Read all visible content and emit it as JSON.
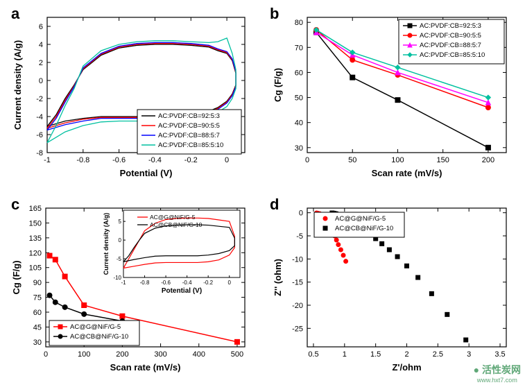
{
  "panel_a": {
    "label": "a",
    "type": "line",
    "xlabel": "Potential (V)",
    "ylabel": "Current density (A/g)",
    "xlim": [
      -1.0,
      0.1
    ],
    "ylim": [
      -8,
      7
    ],
    "xticks": [
      -1.0,
      -0.8,
      -0.6,
      -0.4,
      -0.2,
      0.0
    ],
    "yticks": [
      -8,
      -6,
      -4,
      -2,
      0,
      2,
      4,
      6
    ],
    "label_fontsize": 12,
    "background_color": "#ffffff",
    "series": [
      {
        "name": "AC:PVDF:CB=92:5:3",
        "color": "#000000",
        "data": [
          [
            -1.0,
            -5.1
          ],
          [
            -0.95,
            -3.8
          ],
          [
            -0.9,
            -2.0
          ],
          [
            -0.85,
            -0.5
          ],
          [
            -0.8,
            1.2
          ],
          [
            -0.7,
            2.8
          ],
          [
            -0.6,
            3.6
          ],
          [
            -0.5,
            3.9
          ],
          [
            -0.4,
            4.0
          ],
          [
            -0.3,
            4.0
          ],
          [
            -0.2,
            3.9
          ],
          [
            -0.1,
            3.7
          ],
          [
            -0.05,
            3.3
          ],
          [
            0.0,
            3.0
          ],
          [
            0.03,
            2.2
          ],
          [
            0.05,
            0.8
          ],
          [
            0.05,
            -0.5
          ],
          [
            0.03,
            -1.5
          ],
          [
            0.0,
            -2.3
          ],
          [
            -0.05,
            -3.0
          ],
          [
            -0.1,
            -3.4
          ],
          [
            -0.2,
            -3.7
          ],
          [
            -0.3,
            -3.9
          ],
          [
            -0.4,
            -4.0
          ],
          [
            -0.5,
            -4.0
          ],
          [
            -0.6,
            -4.0
          ],
          [
            -0.7,
            -4.0
          ],
          [
            -0.8,
            -4.2
          ],
          [
            -0.9,
            -4.5
          ],
          [
            -0.95,
            -4.8
          ],
          [
            -1.0,
            -5.1
          ]
        ]
      },
      {
        "name": "AC:PVDF:CB=90:5:5",
        "color": "#ff0000",
        "data": [
          [
            -1.0,
            -5.3
          ],
          [
            -0.95,
            -4.0
          ],
          [
            -0.9,
            -2.2
          ],
          [
            -0.85,
            -0.6
          ],
          [
            -0.8,
            1.3
          ],
          [
            -0.7,
            2.9
          ],
          [
            -0.6,
            3.7
          ],
          [
            -0.5,
            4.0
          ],
          [
            -0.4,
            4.1
          ],
          [
            -0.3,
            4.1
          ],
          [
            -0.2,
            4.0
          ],
          [
            -0.1,
            3.8
          ],
          [
            -0.05,
            3.4
          ],
          [
            0.0,
            3.1
          ],
          [
            0.03,
            2.3
          ],
          [
            0.05,
            0.9
          ],
          [
            0.05,
            -0.6
          ],
          [
            0.03,
            -1.6
          ],
          [
            0.0,
            -2.4
          ],
          [
            -0.05,
            -3.1
          ],
          [
            -0.1,
            -3.5
          ],
          [
            -0.2,
            -3.8
          ],
          [
            -0.3,
            -4.0
          ],
          [
            -0.4,
            -4.1
          ],
          [
            -0.5,
            -4.1
          ],
          [
            -0.6,
            -4.1
          ],
          [
            -0.7,
            -4.1
          ],
          [
            -0.8,
            -4.3
          ],
          [
            -0.9,
            -4.7
          ],
          [
            -0.95,
            -5.0
          ],
          [
            -1.0,
            -5.3
          ]
        ]
      },
      {
        "name": "AC:PVDF:CB=88:5:7",
        "color": "#0000ff",
        "data": [
          [
            -1.0,
            -5.5
          ],
          [
            -0.95,
            -4.2
          ],
          [
            -0.9,
            -2.4
          ],
          [
            -0.85,
            -0.7
          ],
          [
            -0.8,
            1.4
          ],
          [
            -0.7,
            3.0
          ],
          [
            -0.6,
            3.8
          ],
          [
            -0.5,
            4.1
          ],
          [
            -0.4,
            4.2
          ],
          [
            -0.3,
            4.2
          ],
          [
            -0.2,
            4.1
          ],
          [
            -0.1,
            3.9
          ],
          [
            -0.05,
            3.5
          ],
          [
            0.0,
            3.2
          ],
          [
            0.03,
            2.4
          ],
          [
            0.05,
            1.0
          ],
          [
            0.05,
            -0.7
          ],
          [
            0.03,
            -1.7
          ],
          [
            0.0,
            -2.5
          ],
          [
            -0.05,
            -3.2
          ],
          [
            -0.1,
            -3.6
          ],
          [
            -0.2,
            -3.9
          ],
          [
            -0.3,
            -4.1
          ],
          [
            -0.4,
            -4.2
          ],
          [
            -0.5,
            -4.2
          ],
          [
            -0.6,
            -4.2
          ],
          [
            -0.7,
            -4.2
          ],
          [
            -0.8,
            -4.5
          ],
          [
            -0.9,
            -4.9
          ],
          [
            -0.95,
            -5.2
          ],
          [
            -1.0,
            -5.5
          ]
        ]
      },
      {
        "name": "AC:PVDF:CB=85:5:10",
        "color": "#00c0a0",
        "data": [
          [
            -1.0,
            -6.9
          ],
          [
            -0.95,
            -5.0
          ],
          [
            -0.9,
            -2.8
          ],
          [
            -0.85,
            -0.9
          ],
          [
            -0.8,
            1.6
          ],
          [
            -0.7,
            3.3
          ],
          [
            -0.6,
            4.0
          ],
          [
            -0.5,
            4.3
          ],
          [
            -0.4,
            4.4
          ],
          [
            -0.3,
            4.4
          ],
          [
            -0.2,
            4.3
          ],
          [
            -0.1,
            4.2
          ],
          [
            -0.05,
            4.3
          ],
          [
            0.0,
            4.7
          ],
          [
            0.03,
            3.0
          ],
          [
            0.05,
            1.2
          ],
          [
            0.05,
            -0.9
          ],
          [
            0.03,
            -2.0
          ],
          [
            0.0,
            -2.9
          ],
          [
            -0.05,
            -3.5
          ],
          [
            -0.1,
            -3.9
          ],
          [
            -0.2,
            -4.2
          ],
          [
            -0.3,
            -4.4
          ],
          [
            -0.4,
            -4.5
          ],
          [
            -0.5,
            -4.5
          ],
          [
            -0.6,
            -4.5
          ],
          [
            -0.7,
            -4.6
          ],
          [
            -0.8,
            -5.0
          ],
          [
            -0.9,
            -5.7
          ],
          [
            -0.95,
            -6.3
          ],
          [
            -1.0,
            -6.9
          ]
        ]
      }
    ],
    "legend_pos": "bottom-right"
  },
  "panel_b": {
    "label": "b",
    "type": "line-scatter",
    "xlabel": "Scan rate (mV/s)",
    "ylabel": "Cg (F/g)",
    "ylabel_html": "C<sub>g</sub> (F/g)",
    "xlim": [
      0,
      220
    ],
    "ylim": [
      28,
      82
    ],
    "xticks": [
      0,
      50,
      100,
      150,
      200
    ],
    "yticks": [
      30,
      40,
      50,
      60,
      70,
      80
    ],
    "label_fontsize": 12,
    "series": [
      {
        "name": "AC:PVDF:CB=92:5:3",
        "color": "#000000",
        "marker": "square",
        "data": [
          [
            10,
            76
          ],
          [
            50,
            58
          ],
          [
            100,
            49
          ],
          [
            200,
            30
          ]
        ]
      },
      {
        "name": "AC:PVDF:CB=90:5:5",
        "color": "#ff0000",
        "marker": "circle",
        "data": [
          [
            10,
            77
          ],
          [
            50,
            65
          ],
          [
            100,
            59
          ],
          [
            200,
            46
          ]
        ]
      },
      {
        "name": "AC:PVDF:CB=88:5:7",
        "color": "#ff00ff",
        "marker": "triangle",
        "data": [
          [
            10,
            76
          ],
          [
            50,
            67
          ],
          [
            100,
            60
          ],
          [
            200,
            48
          ]
        ]
      },
      {
        "name": "AC:PVDF:CB=85:5:10",
        "color": "#00c0a0",
        "marker": "diamond",
        "data": [
          [
            10,
            77
          ],
          [
            50,
            68
          ],
          [
            100,
            62
          ],
          [
            200,
            50
          ]
        ]
      }
    ],
    "legend_pos": "top-right"
  },
  "panel_c": {
    "label": "c",
    "type": "line-scatter",
    "xlabel": "Scan rate (mV/s)",
    "ylabel": "Cg (F/g)",
    "xlim": [
      0,
      520
    ],
    "ylim": [
      25,
      165
    ],
    "xticks": [
      0,
      100,
      200,
      300,
      400,
      500
    ],
    "yticks": [
      30,
      45,
      60,
      75,
      90,
      105,
      120,
      135,
      150,
      165
    ],
    "label_fontsize": 12,
    "series": [
      {
        "name": "AC@G@NiF/G-5",
        "color": "#ff0000",
        "marker": "square",
        "data": [
          [
            10,
            117
          ],
          [
            25,
            113
          ],
          [
            50,
            96
          ],
          [
            100,
            67
          ],
          [
            200,
            56
          ],
          [
            500,
            30
          ]
        ]
      },
      {
        "name": "AC@CB@NiF/G-10",
        "color": "#000000",
        "marker": "circle",
        "data": [
          [
            10,
            77
          ],
          [
            25,
            70
          ],
          [
            50,
            65
          ],
          [
            100,
            58
          ],
          [
            200,
            51
          ]
        ]
      }
    ],
    "legend_pos": "bottom-left",
    "inset": {
      "xlabel": "Potential (V)",
      "ylabel": "Current density (A/g)",
      "xlim": [
        -1.0,
        0.1
      ],
      "ylim": [
        -10,
        8
      ],
      "xticks": [
        -1.0,
        -0.8,
        -0.6,
        -0.4,
        -0.2,
        0.0
      ],
      "yticks": [
        -10,
        -5,
        0,
        5
      ],
      "series": [
        {
          "name": "AC@G@NiF/G-5",
          "color": "#ff0000",
          "data": [
            [
              -1.0,
              -7.5
            ],
            [
              -0.95,
              -5.0
            ],
            [
              -0.9,
              -2.5
            ],
            [
              -0.85,
              0.0
            ],
            [
              -0.8,
              2.5
            ],
            [
              -0.7,
              4.5
            ],
            [
              -0.6,
              5.5
            ],
            [
              -0.5,
              5.8
            ],
            [
              -0.4,
              5.9
            ],
            [
              -0.3,
              5.9
            ],
            [
              -0.2,
              5.8
            ],
            [
              -0.1,
              5.4
            ],
            [
              0.0,
              5.0
            ],
            [
              0.05,
              1.0
            ],
            [
              0.05,
              -2.0
            ],
            [
              0.0,
              -4.0
            ],
            [
              -0.1,
              -5.3
            ],
            [
              -0.2,
              -5.8
            ],
            [
              -0.3,
              -6.0
            ],
            [
              -0.4,
              -6.0
            ],
            [
              -0.5,
              -6.0
            ],
            [
              -0.6,
              -6.0
            ],
            [
              -0.7,
              -6.1
            ],
            [
              -0.8,
              -6.5
            ],
            [
              -0.9,
              -7.0
            ],
            [
              -1.0,
              -7.5
            ]
          ]
        },
        {
          "name": "AC@CB@NiF/G-10",
          "color": "#000000",
          "data": [
            [
              -1.0,
              -5.8
            ],
            [
              -0.95,
              -4.2
            ],
            [
              -0.9,
              -2.0
            ],
            [
              -0.85,
              0.0
            ],
            [
              -0.8,
              1.8
            ],
            [
              -0.7,
              3.2
            ],
            [
              -0.6,
              3.8
            ],
            [
              -0.5,
              4.0
            ],
            [
              -0.4,
              4.1
            ],
            [
              -0.3,
              4.1
            ],
            [
              -0.2,
              4.0
            ],
            [
              -0.1,
              3.7
            ],
            [
              0.0,
              3.4
            ],
            [
              0.05,
              0.5
            ],
            [
              0.05,
              -1.5
            ],
            [
              0.0,
              -2.8
            ],
            [
              -0.1,
              -3.6
            ],
            [
              -0.2,
              -4.0
            ],
            [
              -0.3,
              -4.2
            ],
            [
              -0.4,
              -4.2
            ],
            [
              -0.5,
              -4.2
            ],
            [
              -0.6,
              -4.2
            ],
            [
              -0.7,
              -4.3
            ],
            [
              -0.8,
              -4.7
            ],
            [
              -0.9,
              -5.2
            ],
            [
              -1.0,
              -5.8
            ]
          ]
        }
      ]
    }
  },
  "panel_d": {
    "label": "d",
    "type": "scatter",
    "xlabel": "Z'/ohm",
    "ylabel": "Z'' (ohm)",
    "xlim": [
      0.4,
      3.6
    ],
    "ylim": [
      -29,
      1
    ],
    "xticks": [
      0.5,
      1.0,
      1.5,
      2.0,
      2.5,
      3.0,
      3.5
    ],
    "yticks": [
      -25,
      -20,
      -15,
      -10,
      -5,
      0
    ],
    "label_fontsize": 12,
    "series": [
      {
        "name": "AC@G@NiF/G-5",
        "color": "#ff0000",
        "marker": "circle",
        "data": [
          [
            0.55,
            -0.05
          ],
          [
            0.57,
            -0.1
          ],
          [
            0.6,
            -0.2
          ],
          [
            0.62,
            -0.35
          ],
          [
            0.64,
            -0.55
          ],
          [
            0.66,
            -0.8
          ],
          [
            0.68,
            -1.1
          ],
          [
            0.7,
            -1.5
          ],
          [
            0.72,
            -1.9
          ],
          [
            0.74,
            -2.4
          ],
          [
            0.76,
            -2.9
          ],
          [
            0.78,
            -3.5
          ],
          [
            0.81,
            -4.2
          ],
          [
            0.84,
            -5.0
          ],
          [
            0.87,
            -5.9
          ],
          [
            0.9,
            -6.9
          ],
          [
            0.94,
            -8.0
          ],
          [
            0.98,
            -9.2
          ],
          [
            1.02,
            -10.5
          ]
        ]
      },
      {
        "name": "AC@CB@NiF/G-10",
        "color": "#000000",
        "marker": "square",
        "data": [
          [
            0.8,
            -0.05
          ],
          [
            0.83,
            -0.12
          ],
          [
            0.86,
            -0.22
          ],
          [
            0.9,
            -0.35
          ],
          [
            0.94,
            -0.5
          ],
          [
            0.98,
            -0.7
          ],
          [
            1.02,
            -0.95
          ],
          [
            1.06,
            -1.25
          ],
          [
            1.1,
            -1.6
          ],
          [
            1.15,
            -2.0
          ],
          [
            1.2,
            -2.5
          ],
          [
            1.26,
            -3.1
          ],
          [
            1.33,
            -3.8
          ],
          [
            1.41,
            -4.6
          ],
          [
            1.5,
            -5.6
          ],
          [
            1.6,
            -6.7
          ],
          [
            1.72,
            -8.0
          ],
          [
            1.85,
            -9.5
          ],
          [
            2.0,
            -11.5
          ],
          [
            2.18,
            -14.0
          ],
          [
            2.4,
            -17.5
          ],
          [
            2.65,
            -22.0
          ],
          [
            2.95,
            -27.5
          ]
        ]
      }
    ],
    "legend_pos": "top-left"
  },
  "watermark": {
    "text": "活性炭网",
    "subtext": "www.hxt7.com",
    "color": "#2a8a4a"
  }
}
